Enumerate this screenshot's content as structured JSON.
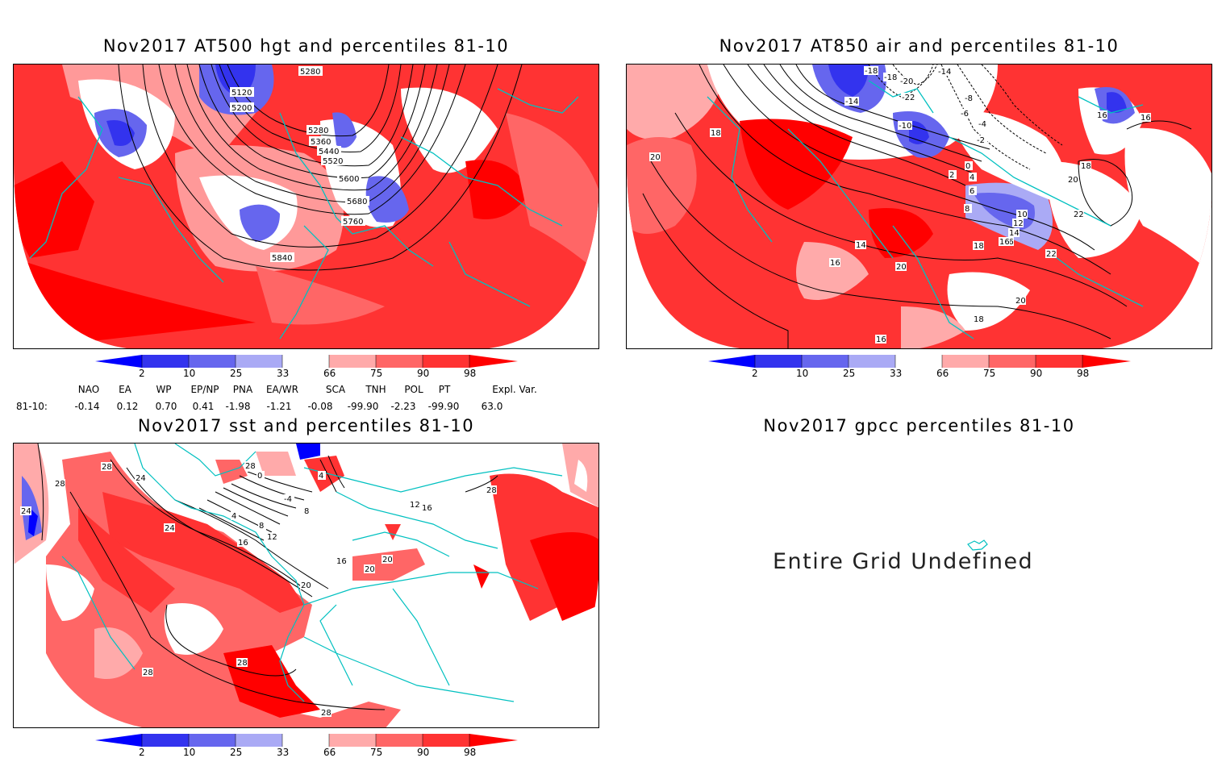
{
  "panels": {
    "hgt": {
      "title": "Nov2017 AT500 hgt and percentiles 81-10",
      "contour_labels": [
        "5280",
        "5120",
        "5200",
        "5280",
        "5360",
        "5440",
        "5520",
        "5600",
        "5680",
        "5760",
        "5840"
      ]
    },
    "air": {
      "title": "Nov2017 AT850 air and percentiles 81-10",
      "contour_labels": [
        "-18",
        "-18",
        "-20",
        "-14",
        "-14",
        "-22",
        "-8",
        "-10",
        "-6",
        "-4",
        "-2",
        "0",
        "2",
        "4",
        "6",
        "8",
        "10",
        "12",
        "14",
        "16",
        "18",
        "16",
        "16",
        "18",
        "20",
        "14",
        "16",
        "20",
        "18",
        "20",
        "22",
        "22",
        "16",
        "18",
        "20",
        "16"
      ]
    },
    "sst": {
      "title": "Nov2017 sst and percentiles 81-10",
      "contour_labels": [
        "28",
        "24",
        "28",
        "24",
        "0",
        "0",
        "4",
        "-4",
        "8",
        "4",
        "8",
        "12",
        "16",
        "24",
        "20",
        "16",
        "20",
        "20",
        "28",
        "28",
        "28",
        "28",
        "28",
        "12",
        "16"
      ]
    },
    "gpcc": {
      "title": "Nov2017 gpcc percentiles 81-10",
      "message": "Entire Grid Undefined"
    }
  },
  "colorbar": {
    "labels": [
      "2",
      "10",
      "25",
      "33",
      "66",
      "75",
      "90",
      "98"
    ],
    "colors": [
      "#0000ff",
      "#3333ee",
      "#6666ee",
      "#aaaaf5",
      "#ffffff",
      "#ffaaaa",
      "#ff6666",
      "#ff3333",
      "#ff0000"
    ]
  },
  "indices": {
    "headers": [
      "NAO",
      "EA",
      "WP",
      "EP/NP",
      "PNA",
      "EA/WR",
      "SCA",
      "TNH",
      "POL",
      "PT",
      "Expl. Var."
    ],
    "row_label": "81-10:",
    "values": [
      "-0.14",
      "0.12",
      "0.70",
      "0.41",
      "-1.98",
      "-1.21",
      "-0.08",
      "-99.90",
      "-2.23",
      "-99.90",
      "63.0"
    ]
  }
}
